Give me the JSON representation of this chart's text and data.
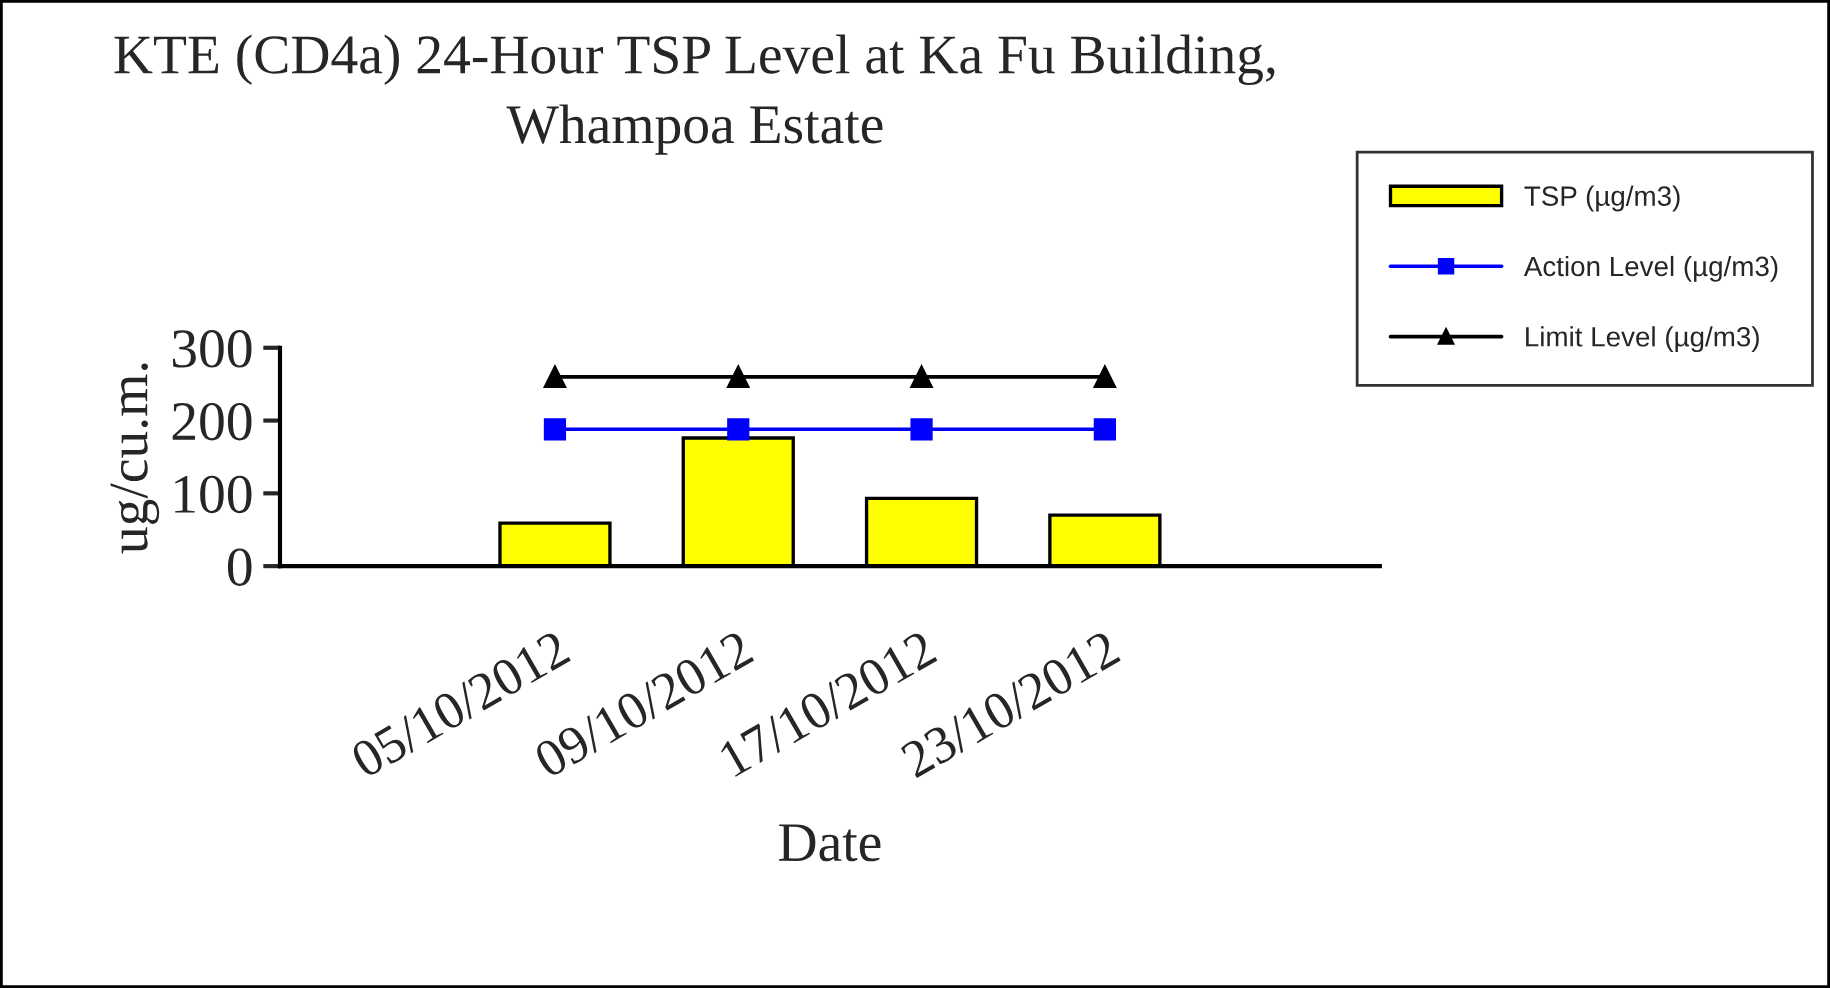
{
  "chart_data": {
    "type": "bar",
    "title": "KTE (CD4a) 24-Hour TSP Level at Ka Fu Building,\nWhampoa Estate",
    "xlabel": "Date",
    "ylabel": "ug/cu.m.",
    "categories": [
      null,
      "05/10/2012",
      "09/10/2012",
      "17/10/2012",
      "23/10/2012",
      null
    ],
    "series": [
      {
        "name": "TSP (µg/m3)",
        "color": "#ffff00",
        "values": [
          null,
          59,
          176,
          93,
          70,
          null
        ]
      },
      {
        "name": "Action Level (µg/m3)",
        "type": "line",
        "color": "#0000ff",
        "marker": "square",
        "values": [
          null,
          188,
          188,
          188,
          188,
          null
        ]
      },
      {
        "name": "Limit Level (µg/m3)",
        "type": "line",
        "color": "#000000",
        "marker": "triangle",
        "values": [
          null,
          260,
          260,
          260,
          260,
          null
        ]
      }
    ],
    "ylim": [
      0,
      300
    ],
    "yticks": [
      0,
      100,
      200,
      300
    ],
    "grid": false,
    "legend": "top right"
  }
}
